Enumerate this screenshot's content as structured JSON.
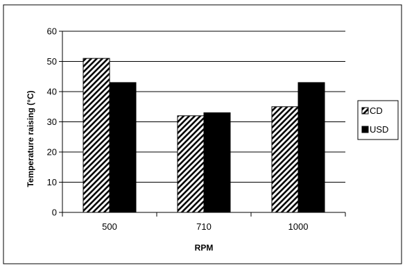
{
  "chart_data": {
    "type": "bar",
    "title": "",
    "xlabel": "RPM",
    "ylabel": "Temperature raising (°C)",
    "categories": [
      "500",
      "710",
      "1000"
    ],
    "ylim": [
      0,
      60
    ],
    "yticks": [
      "0",
      "10",
      "20",
      "30",
      "40",
      "50",
      "60"
    ],
    "grid": true,
    "legend_position": "right",
    "series": [
      {
        "name": "CD",
        "values": [
          51,
          32,
          35
        ],
        "fill": "hatched",
        "color": "#000000"
      },
      {
        "name": "USD",
        "values": [
          43,
          33,
          43
        ],
        "fill": "solid",
        "color": "#000000"
      }
    ]
  }
}
